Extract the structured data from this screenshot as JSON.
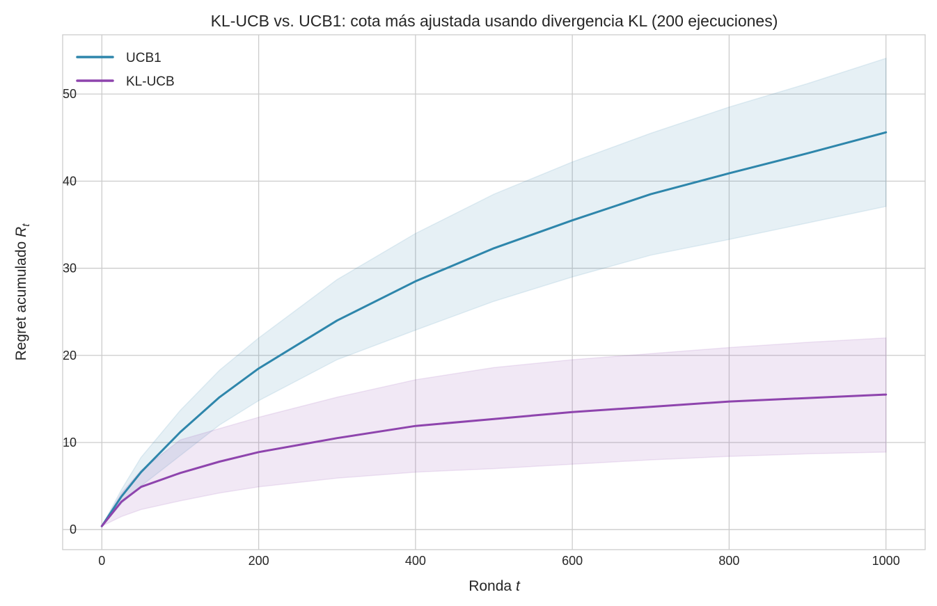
{
  "chart_data": {
    "type": "line",
    "title": "KL-UCB vs. UCB1: cota más ajustada usando divergencia KL (200 ejecuciones)",
    "xlabel": "Ronda",
    "xlabel_var": "t",
    "ylabel": "Regret acumulado",
    "ylabel_var": "R",
    "ylabel_sub": "t",
    "xlim": [
      -50,
      1050
    ],
    "ylim": [
      -2.3,
      56.8
    ],
    "xticks": [
      0,
      200,
      400,
      600,
      800,
      1000
    ],
    "yticks": [
      0,
      10,
      20,
      30,
      40,
      50
    ],
    "grid": true,
    "legend_position": "top-left",
    "x": [
      0,
      25,
      50,
      100,
      150,
      200,
      300,
      400,
      500,
      600,
      700,
      800,
      900,
      1000
    ],
    "series": [
      {
        "name": "UCB1",
        "color": "#2e86ab",
        "values": [
          0.4,
          3.8,
          6.6,
          11.2,
          15.2,
          18.5,
          24.0,
          28.5,
          32.3,
          35.5,
          38.5,
          40.9,
          43.2,
          45.6
        ],
        "upper": [
          0.4,
          4.6,
          8.3,
          13.7,
          18.3,
          22.0,
          28.7,
          34.0,
          38.5,
          42.2,
          45.5,
          48.5,
          51.2,
          54.1
        ],
        "lower": [
          0.4,
          3.0,
          5.0,
          8.5,
          12.0,
          14.8,
          19.5,
          22.9,
          26.2,
          29.0,
          31.5,
          33.3,
          35.2,
          37.1
        ]
      },
      {
        "name": "KL-UCB",
        "color": "#8e44ad",
        "values": [
          0.4,
          3.2,
          4.9,
          6.5,
          7.8,
          8.9,
          10.5,
          11.9,
          12.7,
          13.5,
          14.1,
          14.7,
          15.1,
          15.5
        ],
        "upper": [
          0.4,
          4.2,
          6.8,
          10.3,
          11.6,
          12.9,
          15.2,
          17.2,
          18.6,
          19.5,
          20.2,
          20.9,
          21.5,
          22.0
        ],
        "lower": [
          0.4,
          1.5,
          2.3,
          3.3,
          4.2,
          4.9,
          5.9,
          6.6,
          7.0,
          7.5,
          8.0,
          8.4,
          8.7,
          8.9
        ]
      }
    ]
  }
}
